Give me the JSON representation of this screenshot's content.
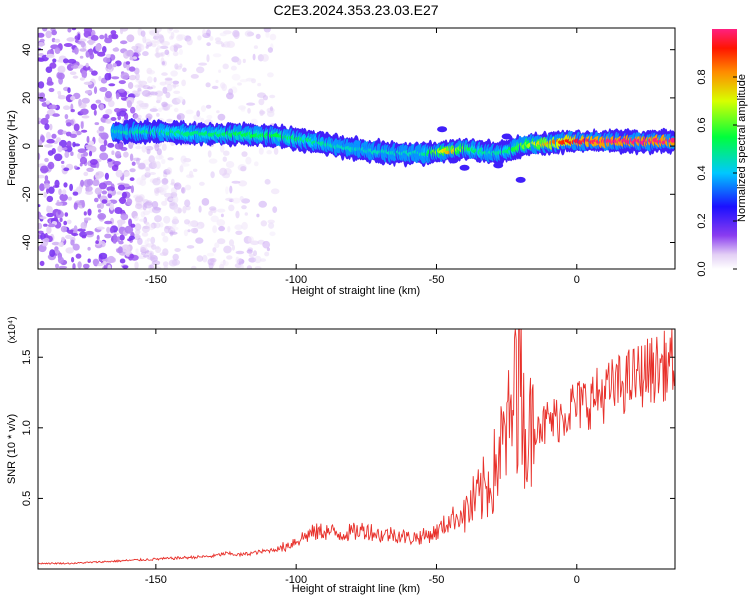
{
  "title": "C2E3.2024.353.23.03.E27",
  "colorbar": {
    "label": "Normalized spectral amplitude",
    "ticks": [
      "0.0",
      "0.2",
      "0.4",
      "0.6",
      "0.8"
    ]
  },
  "chart_data": [
    {
      "type": "heatmap",
      "xlabel": "Height of straight line (km)",
      "ylabel": "Frequency (Hz)",
      "xlim": [
        -192,
        35
      ],
      "ylim": [
        -51,
        49
      ],
      "xticks": [
        "-150",
        "-100",
        "-50",
        "0"
      ],
      "yticks": [
        "40",
        "20",
        "0",
        "-20",
        "-40"
      ],
      "zlim": [
        0,
        1
      ],
      "ridge": {
        "x": [
          -165,
          -150,
          -135,
          -120,
          -105,
          -95,
          -85,
          -75,
          -65,
          -55,
          -45,
          -40,
          -35,
          -30,
          -25,
          -20,
          -15,
          -10,
          -5,
          0,
          10,
          20,
          35
        ],
        "frequency": [
          6,
          6,
          5,
          5,
          4,
          2,
          0,
          -2,
          -3,
          -3,
          -2,
          -1,
          -2,
          -3,
          -2,
          0,
          1,
          1,
          2,
          2,
          2,
          2,
          2
        ],
        "peak_amplitude": [
          0.45,
          0.5,
          0.5,
          0.55,
          0.55,
          0.5,
          0.45,
          0.45,
          0.45,
          0.45,
          0.8,
          0.6,
          0.5,
          0.45,
          0.5,
          0.6,
          0.7,
          0.8,
          0.9,
          0.95,
          1.0,
          1.0,
          1.0
        ]
      }
    },
    {
      "type": "line",
      "xlabel": "Height of straight line (km)",
      "ylabel": "SNR (10 * v/v)",
      "y_multiplier": "(x10⁴)",
      "xlim": [
        -192,
        35
      ],
      "ylim": [
        0,
        17000
      ],
      "xticks": [
        "-150",
        "-100",
        "-50",
        "0"
      ],
      "yticks": [
        "1.5",
        "1.0",
        "0.5"
      ],
      "series": [
        {
          "color": "#e8302a",
          "x": [
            -192,
            -180,
            -170,
            -160,
            -150,
            -140,
            -130,
            -125,
            -120,
            -110,
            -105,
            -100,
            -95,
            -90,
            -85,
            -80,
            -75,
            -70,
            -65,
            -60,
            -55,
            -50,
            -45,
            -40,
            -35,
            -30,
            -28,
            -25,
            -23,
            -21,
            -20,
            -19,
            -18,
            -16,
            -14,
            -12,
            -10,
            -8,
            -5,
            -2,
            0,
            5,
            10,
            15,
            20,
            25,
            30,
            35
          ],
          "values": [
            400,
            400,
            500,
            600,
            700,
            800,
            900,
            1100,
            1000,
            1300,
            1500,
            2000,
            2500,
            2700,
            2500,
            2600,
            2800,
            2400,
            2500,
            2200,
            2300,
            2600,
            3500,
            4000,
            5000,
            6500,
            8000,
            9500,
            11000,
            12500,
            14000,
            11000,
            9000,
            10000,
            11000,
            10000,
            10500,
            10500,
            11000,
            11500,
            11500,
            12000,
            12500,
            13000,
            13500,
            14000,
            14300,
            14700
          ]
        }
      ]
    }
  ]
}
